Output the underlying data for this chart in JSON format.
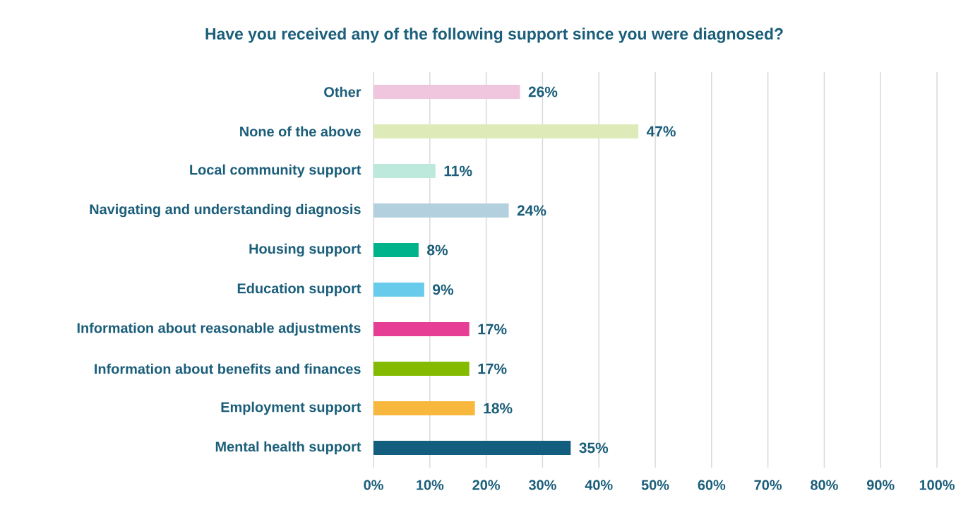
{
  "chart_data": {
    "type": "bar",
    "orientation": "horizontal",
    "title": "Have you received any of the following support since you were diagnosed?",
    "categories": [
      "Other",
      "None of the above",
      "Local community support",
      "Navigating and understanding diagnosis",
      "Housing support",
      "Education support",
      "Information about reasonable adjustments",
      "Information about benefits and finances",
      "Employment support",
      "Mental health support"
    ],
    "values": [
      26,
      47,
      11,
      24,
      8,
      9,
      17,
      17,
      18,
      35
    ],
    "value_labels": [
      "26%",
      "47%",
      "11%",
      "24%",
      "8%",
      "9%",
      "17%",
      "17%",
      "18%",
      "35%"
    ],
    "colors": [
      "#f0c6df",
      "#deeab8",
      "#bde8dc",
      "#b3d0de",
      "#00b38a",
      "#68cbeb",
      "#e63e94",
      "#84bb00",
      "#f7b83d",
      "#135e7e"
    ],
    "xlim": [
      0,
      100
    ],
    "xticks": [
      {
        "value": 0,
        "label": "0%"
      },
      {
        "value": 10,
        "label": "10%"
      },
      {
        "value": 20,
        "label": "20%"
      },
      {
        "value": 30,
        "label": "30%"
      },
      {
        "value": 40,
        "label": "40%"
      },
      {
        "value": 50,
        "label": "50%"
      },
      {
        "value": 60,
        "label": "60%"
      },
      {
        "value": 70,
        "label": "70%"
      },
      {
        "value": 80,
        "label": "80%"
      },
      {
        "value": 90,
        "label": "90%"
      },
      {
        "value": 100,
        "label": "100%"
      }
    ],
    "grid": "x"
  }
}
